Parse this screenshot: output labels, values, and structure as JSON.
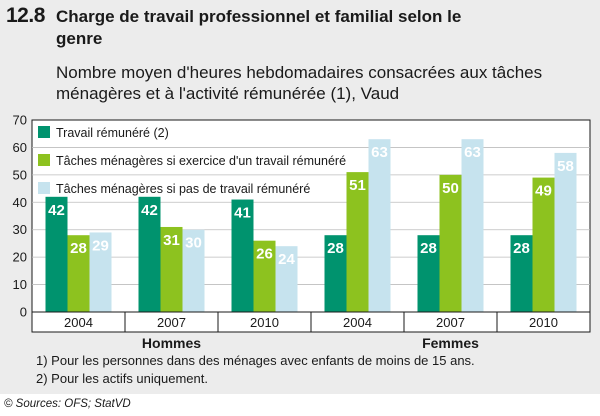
{
  "figure_number": "12.8",
  "title": "Charge de travail professionnel et familial selon le genre",
  "subtitle": "Nombre moyen d'heures hebdomadaires consacrées aux tâches ménagères et à l'activité rémunérée (1), Vaud",
  "footnotes": [
    "1) Pour les personnes dans des ménages avec enfants de moins de 15 ans.",
    "2) Pour les actifs uniquement."
  ],
  "source": "© Sources: OFS; StatVD",
  "chart_data": {
    "type": "bar",
    "groups": [
      "Hommes",
      "Femmes"
    ],
    "categories": [
      "2004",
      "2007",
      "2010",
      "2004",
      "2007",
      "2010"
    ],
    "category_group": [
      "Hommes",
      "Hommes",
      "Hommes",
      "Femmes",
      "Femmes",
      "Femmes"
    ],
    "series": [
      {
        "name": "Travail rémunéré (2)",
        "color": "#00936e",
        "values": [
          42,
          42,
          41,
          28,
          28,
          28
        ]
      },
      {
        "name": "Tâches ménagères si exercice d'un travail rémunéré",
        "color": "#8dc21f",
        "values": [
          28,
          31,
          26,
          51,
          50,
          49
        ]
      },
      {
        "name": "Tâches ménagères si pas de travail rémunéré",
        "color": "#c6e3ee",
        "values": [
          29,
          30,
          24,
          63,
          63,
          58
        ]
      }
    ],
    "y_ticks": [
      0,
      10,
      20,
      30,
      40,
      50,
      60,
      70
    ],
    "ylim": [
      0,
      70
    ],
    "grid": true,
    "legend_position": "top-left"
  }
}
